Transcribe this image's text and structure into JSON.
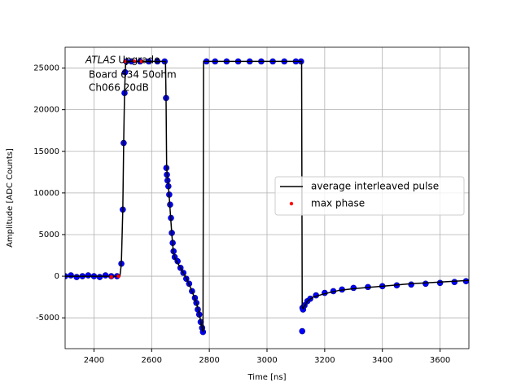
{
  "chart_data": {
    "type": "line",
    "xlabel": "Time [ns]",
    "ylabel": "Amplitude [ADC Counts]",
    "annotations": [
      "ATLAS",
      "Upgrade",
      "Board 634 50ohm",
      "Ch066 20dB"
    ],
    "xlim": [
      2300,
      3700
    ],
    "ylim": [
      -8700,
      27500
    ],
    "xticks": [
      2400,
      2600,
      2800,
      3000,
      3200,
      3400,
      3600
    ],
    "yticks": [
      -5000,
      0,
      5000,
      10000,
      15000,
      20000,
      25000
    ],
    "grid": true,
    "legend": "center right",
    "series": [
      {
        "color": "#0000ff",
        "marker": "o",
        "line": false,
        "x": [
          2300,
          2320,
          2340,
          2360,
          2380,
          2400,
          2420,
          2440,
          2460,
          2480,
          2495,
          2500,
          2503,
          2506,
          2508,
          2512,
          2530,
          2560,
          2590,
          2620,
          2645,
          2650,
          2651,
          2653,
          2655,
          2658,
          2661,
          2664,
          2667,
          2670,
          2673,
          2676,
          2680,
          2690,
          2700,
          2710,
          2720,
          2730,
          2740,
          2750,
          2755,
          2760,
          2765,
          2770,
          2775,
          2778,
          2790,
          2820,
          2860,
          2900,
          2940,
          2980,
          3020,
          3060,
          3100,
          3118,
          3122,
          3123,
          3125,
          3130,
          3140,
          3150,
          3170,
          3200,
          3230,
          3260,
          3300,
          3350,
          3400,
          3450,
          3500,
          3550,
          3600,
          3650,
          3690
        ],
        "values": [
          0,
          100,
          -100,
          0,
          100,
          0,
          -100,
          100,
          0,
          0,
          1500,
          8000,
          16000,
          22000,
          24500,
          25800,
          25800,
          25800,
          25800,
          25800,
          25800,
          21400,
          13000,
          12200,
          11500,
          10800,
          9800,
          8600,
          7000,
          5200,
          4000,
          3000,
          2300,
          1800,
          1000,
          400,
          -300,
          -900,
          -1800,
          -2600,
          -3200,
          -4000,
          -4600,
          -5500,
          -6200,
          -6700,
          25800,
          25800,
          25800,
          25800,
          25800,
          25800,
          25800,
          25800,
          25800,
          25800,
          -6600,
          -3800,
          -4000,
          -3500,
          -3000,
          -2700,
          -2300,
          -2000,
          -1800,
          -1600,
          -1400,
          -1300,
          -1200,
          -1100,
          -1000,
          -900,
          -800,
          -700,
          -600
        ]
      },
      {
        "name": "average interleaved pulse",
        "color": "#000000",
        "line": true,
        "x": [
          2300,
          2350,
          2400,
          2450,
          2490,
          2495,
          2500,
          2503,
          2506,
          2510,
          2520,
          2600,
          2648,
          2650,
          2652,
          2656,
          2660,
          2665,
          2670,
          2675,
          2680,
          2700,
          2720,
          2740,
          2755,
          2765,
          2772,
          2776,
          2778,
          2780,
          2800,
          3000,
          3120,
          3122,
          3125,
          3140,
          3160,
          3200,
          3250,
          3300,
          3400,
          3500,
          3600,
          3700
        ],
        "values": [
          0,
          0,
          0,
          0,
          0,
          1500,
          8000,
          16000,
          22000,
          25800,
          25800,
          25800,
          25800,
          21200,
          13000,
          11500,
          10000,
          7500,
          5000,
          3000,
          2200,
          1000,
          -200,
          -1800,
          -3200,
          -4500,
          -5800,
          -6500,
          -6600,
          25800,
          25800,
          25800,
          25800,
          -3600,
          -3900,
          -3000,
          -2500,
          -2100,
          -1700,
          -1500,
          -1200,
          -900,
          -700,
          -500
        ]
      },
      {
        "name": "max phase",
        "color": "#ff0000",
        "marker": ".",
        "line": false,
        "x": [
          2460,
          2485,
          2510,
          2540,
          2565
        ],
        "values": [
          -100,
          0,
          25800,
          25800,
          25800
        ]
      }
    ]
  }
}
